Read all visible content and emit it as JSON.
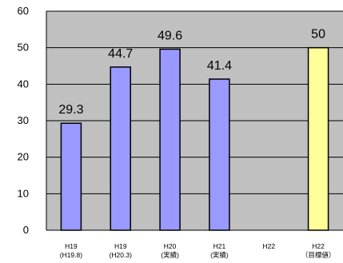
{
  "chart_data": {
    "type": "bar",
    "title": "",
    "xlabel": "",
    "ylabel": "",
    "ylim": [
      0,
      60
    ],
    "yticks": [
      0,
      10,
      20,
      30,
      40,
      50,
      60
    ],
    "grid": true,
    "plot_background": "#c0c0c0",
    "categories": [
      [
        "H19",
        "(H19.8)"
      ],
      [
        "H19",
        "(H20.3)"
      ],
      [
        "H20",
        "(実績)"
      ],
      [
        "H21",
        "(実績)"
      ],
      [
        "H22",
        ""
      ],
      [
        "H22",
        "（目標値）"
      ]
    ],
    "values": [
      29.3,
      44.7,
      49.6,
      41.4,
      null,
      50
    ],
    "data_labels": [
      "29.3",
      "44.7",
      "49.6",
      "41.4",
      "",
      "50"
    ],
    "bar_colors": [
      "#9999ff",
      "#9999ff",
      "#9999ff",
      "#9999ff",
      "#9999ff",
      "#ffff99"
    ]
  }
}
